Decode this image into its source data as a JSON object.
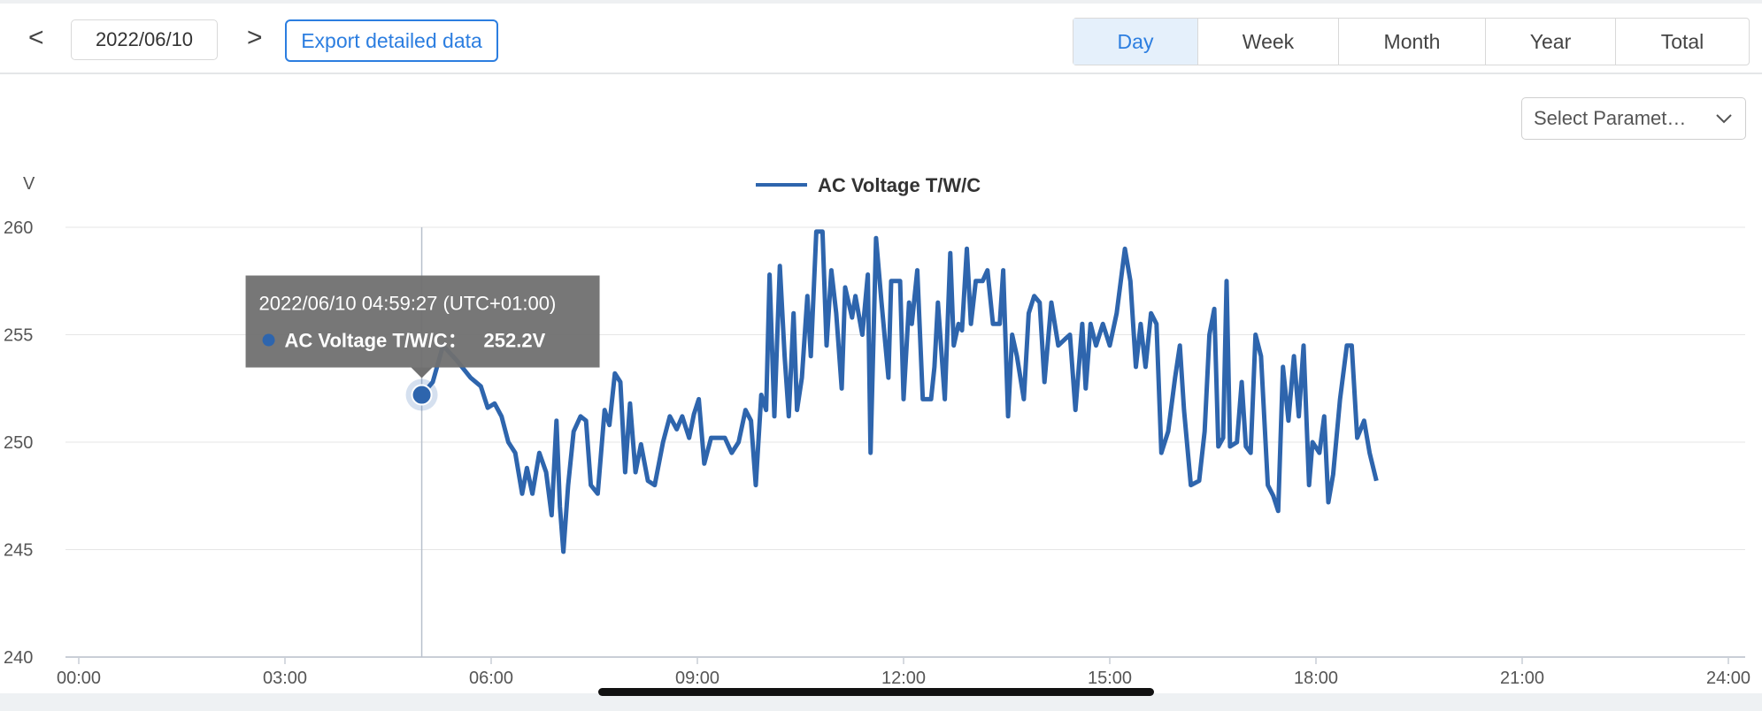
{
  "toolbar": {
    "prev": "<",
    "date": "2022/06/10",
    "next": ">",
    "export": "Export detailed data",
    "tabs": [
      "Day",
      "Week",
      "Month",
      "Year",
      "Total"
    ],
    "parameter_select": "Select Paramet…"
  },
  "chart_data": {
    "type": "line",
    "y_axis_label": "V",
    "xlim": [
      0,
      24
    ],
    "xticks": [
      {
        "value": 0,
        "label": "00:00"
      },
      {
        "value": 3,
        "label": "03:00"
      },
      {
        "value": 6,
        "label": "06:00"
      },
      {
        "value": 9,
        "label": "09:00"
      },
      {
        "value": 12,
        "label": "12:00"
      },
      {
        "value": 15,
        "label": "15:00"
      },
      {
        "value": 18,
        "label": "18:00"
      },
      {
        "value": 21,
        "label": "21:00"
      },
      {
        "value": 24,
        "label": "24:00"
      }
    ],
    "ylim": [
      240,
      260
    ],
    "yticks": [
      240,
      245,
      250,
      255,
      260
    ],
    "grid": true,
    "x": [
      4.99,
      5.15,
      5.3,
      5.5,
      5.7,
      5.85,
      5.95,
      6.05,
      6.15,
      6.25,
      6.35,
      6.45,
      6.52,
      6.6,
      6.7,
      6.8,
      6.88,
      6.95,
      7.0,
      7.05,
      7.12,
      7.2,
      7.3,
      7.38,
      7.45,
      7.55,
      7.65,
      7.72,
      7.8,
      7.88,
      7.95,
      8.02,
      8.1,
      8.18,
      8.28,
      8.38,
      8.5,
      8.6,
      8.7,
      8.78,
      8.88,
      8.95,
      9.02,
      9.1,
      9.2,
      9.4,
      9.5,
      9.6,
      9.7,
      9.78,
      9.85,
      9.93,
      10.0,
      10.05,
      10.12,
      10.2,
      10.27,
      10.33,
      10.4,
      10.45,
      10.52,
      10.6,
      10.65,
      10.73,
      10.82,
      10.88,
      10.95,
      11.02,
      11.1,
      11.15,
      11.25,
      11.3,
      11.4,
      11.48,
      11.52,
      11.6,
      11.68,
      11.78,
      11.82,
      11.95,
      12.0,
      12.08,
      12.12,
      12.2,
      12.28,
      12.4,
      12.45,
      12.5,
      12.6,
      12.68,
      12.73,
      12.8,
      12.85,
      12.92,
      12.98,
      13.05,
      13.15,
      13.22,
      13.3,
      13.4,
      13.45,
      13.52,
      13.58,
      13.65,
      13.75,
      13.82,
      13.9,
      13.98,
      14.05,
      14.15,
      14.25,
      14.35,
      14.42,
      14.5,
      14.6,
      14.65,
      14.72,
      14.8,
      14.9,
      15.0,
      15.1,
      15.22,
      15.3,
      15.38,
      15.45,
      15.52,
      15.6,
      15.68,
      15.75,
      15.85,
      15.95,
      16.02,
      16.08,
      16.18,
      16.3,
      16.38,
      16.45,
      16.52,
      16.58,
      16.65,
      16.7,
      16.75,
      16.85,
      16.92,
      16.98,
      17.05,
      17.12,
      17.2,
      17.3,
      17.38,
      17.45,
      17.52,
      17.6,
      17.68,
      17.75,
      17.82,
      17.9,
      17.95,
      18.05,
      18.12,
      18.18,
      18.25,
      18.35,
      18.45,
      18.52,
      18.6,
      18.7,
      18.78,
      18.88
    ],
    "series": [
      {
        "name": "AC Voltage T/W/C",
        "color": "#2e65ad",
        "values": [
          252.2,
          252.8,
          254.5,
          253.8,
          253.0,
          252.6,
          251.6,
          251.8,
          251.2,
          250.0,
          249.5,
          247.6,
          248.8,
          247.6,
          249.5,
          248.6,
          246.6,
          251.0,
          247.0,
          244.9,
          248.0,
          250.5,
          251.2,
          251.0,
          248.0,
          247.6,
          251.5,
          250.8,
          253.2,
          252.8,
          248.6,
          251.8,
          248.6,
          249.9,
          248.2,
          248.0,
          250.0,
          251.2,
          250.6,
          251.2,
          250.2,
          251.3,
          252.0,
          249.0,
          250.2,
          250.2,
          249.5,
          250.0,
          251.5,
          251.0,
          248.0,
          252.2,
          251.5,
          257.8,
          251.2,
          258.2,
          254.0,
          251.2,
          256.0,
          251.5,
          253.0,
          256.8,
          254.0,
          259.8,
          259.8,
          254.5,
          258.0,
          256.0,
          252.5,
          257.2,
          255.8,
          256.8,
          255.0,
          257.8,
          249.5,
          259.5,
          256.5,
          253.0,
          257.5,
          257.5,
          252.0,
          256.5,
          255.5,
          258.0,
          252.0,
          252.0,
          253.5,
          256.5,
          252.0,
          258.8,
          254.5,
          255.5,
          255.2,
          259.0,
          255.5,
          257.5,
          257.5,
          258.0,
          255.5,
          255.5,
          258.0,
          251.2,
          255.0,
          254.0,
          252.0,
          256.0,
          256.8,
          256.5,
          252.8,
          256.5,
          254.5,
          254.8,
          255.0,
          251.5,
          255.5,
          252.5,
          255.5,
          254.5,
          255.5,
          254.5,
          256.0,
          259.0,
          257.5,
          253.5,
          255.5,
          253.5,
          256.0,
          255.5,
          249.5,
          250.5,
          253.0,
          254.5,
          251.5,
          248.0,
          248.2,
          250.5,
          255.0,
          256.2,
          249.8,
          250.2,
          257.5,
          249.8,
          250.0,
          252.8,
          249.8,
          249.5,
          255.0,
          254.0,
          248.0,
          247.5,
          246.8,
          253.5,
          251.0,
          254.0,
          251.2,
          254.5,
          248.0,
          250.0,
          249.5,
          251.2,
          247.2,
          248.5,
          252.0,
          254.5,
          254.5,
          250.2,
          251.0,
          249.5,
          248.2
        ]
      }
    ],
    "tooltip": {
      "time": "2022/06/10 04:59:27 (UTC+01:00)",
      "series": "AC Voltage T/W/C：",
      "value_label": "252.2V"
    }
  }
}
